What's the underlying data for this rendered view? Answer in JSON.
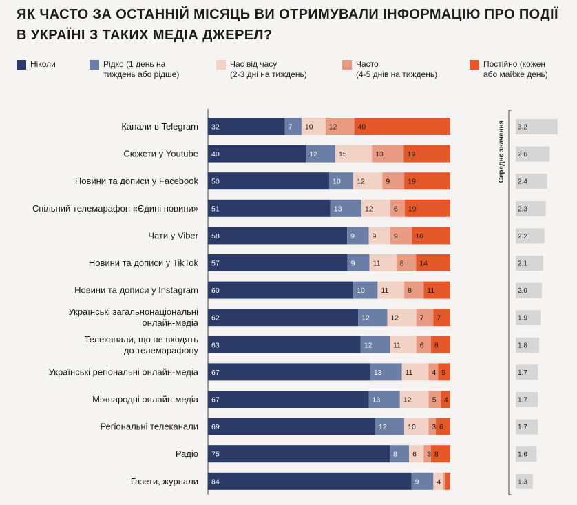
{
  "title": "ЯК ЧАСТО ЗА ОСТАННІЙ МІСЯЦЬ ВИ ОТРИМУВАЛИ ІНФОРМАЦІЮ ПРО ПОДІЇ В УКРАЇНІ З ТАКИХ МЕДІА ДЖЕРЕЛ?",
  "colors": [
    "#2b3a67",
    "#6b7fa6",
    "#f3d2c6",
    "#e89a83",
    "#e45729"
  ],
  "label_colors": [
    "#ffffff",
    "#ffffff",
    "#1a1a1a",
    "#1a1a1a",
    "#1a1a1a"
  ],
  "avg_bar_color": "#d6d6d6",
  "legend": [
    "Ніколи",
    "Рідко (1 день на\nтиждень або рідше)",
    "Час від часу\n(2-3 дні на тиждень)",
    "Часто\n(4-5 днів на тиждень)",
    "Постійно (кожен\nабо майже день)"
  ],
  "chart_data": {
    "type": "bar",
    "orientation": "horizontal",
    "stacked": true,
    "title": "ЯК ЧАСТО ЗА ОСТАННІЙ МІСЯЦЬ ВИ ОТРИМУВАЛИ ІНФОРМАЦІЮ ПРО ПОДІЇ В УКРАЇНІ З ТАКИХ МЕДІА ДЖЕРЕЛ?",
    "xlim": [
      0,
      100
    ],
    "categories": [
      "Канали в Telegram",
      "Сюжети у Youtube",
      "Новини та дописи у Facebook",
      "Спільний телемарафон «Єдині новини»",
      "Чати у Viber",
      "Новини та дописи у TikTok",
      "Новини та дописи у Instagram",
      "Українські загальнонаціональні\nонлайн-медіа",
      "Телеканали, що не входять\nдо телемарафону",
      "Українські регіональні онлайн-медіа",
      "Міжнародні онлайн-медіа",
      "Регіональні телеканали",
      "Радіо",
      "Газети, журнали"
    ],
    "series": [
      {
        "name": "Ніколи",
        "values": [
          32,
          40,
          50,
          51,
          58,
          57,
          60,
          62,
          63,
          67,
          67,
          69,
          75,
          84
        ]
      },
      {
        "name": "Рідко (1 день на тиждень або рідше)",
        "values": [
          7,
          12,
          10,
          13,
          9,
          9,
          10,
          12,
          12,
          13,
          13,
          12,
          8,
          9
        ]
      },
      {
        "name": "Час від часу (2-3 дні на тиждень)",
        "values": [
          10,
          15,
          12,
          12,
          9,
          11,
          11,
          12,
          11,
          11,
          12,
          10,
          6,
          4
        ]
      },
      {
        "name": "Часто (4-5 днів на тиждень)",
        "values": [
          12,
          13,
          9,
          6,
          9,
          8,
          8,
          7,
          6,
          4,
          5,
          3,
          3,
          1
        ]
      },
      {
        "name": "Постійно (кожен або майже день)",
        "values": [
          40,
          19,
          19,
          19,
          16,
          14,
          11,
          7,
          8,
          5,
          4,
          6,
          8,
          2
        ]
      }
    ],
    "value_labels_shown": [
      [
        true,
        true,
        true,
        true,
        true,
        true,
        true,
        true,
        true,
        true,
        true,
        true,
        true,
        true
      ],
      [
        true,
        true,
        true,
        true,
        true,
        true,
        true,
        true,
        true,
        true,
        true,
        true,
        true,
        true
      ],
      [
        true,
        true,
        true,
        true,
        true,
        true,
        true,
        true,
        true,
        true,
        true,
        true,
        true,
        true
      ],
      [
        true,
        true,
        true,
        true,
        true,
        true,
        true,
        true,
        true,
        true,
        true,
        true,
        true,
        false
      ],
      [
        true,
        true,
        true,
        true,
        true,
        true,
        true,
        true,
        true,
        true,
        true,
        true,
        true,
        false
      ]
    ],
    "average": {
      "title": "Середнє значення",
      "xlim": [
        0,
        4
      ],
      "values": [
        3.2,
        2.6,
        2.4,
        2.3,
        2.2,
        2.1,
        2.0,
        1.9,
        1.8,
        1.7,
        1.7,
        1.7,
        1.6,
        1.3
      ],
      "labels": [
        "3.2",
        "2.6",
        "2.4",
        "2.3",
        "2.2",
        "2.1",
        "2.0",
        "1.9",
        "1.8",
        "1.7",
        "1.7",
        "1.7",
        "1.6",
        "1.3"
      ]
    }
  }
}
